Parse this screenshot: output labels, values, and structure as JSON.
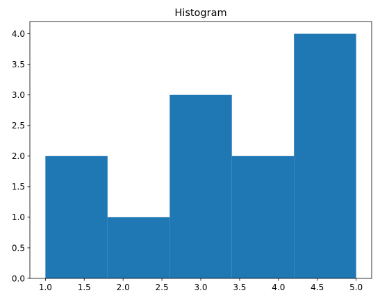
{
  "chart_data": {
    "type": "bar",
    "title": "Histogram",
    "xlabel": "",
    "ylabel": "",
    "xlim": [
      0.8,
      5.2
    ],
    "ylim": [
      0,
      4.2
    ],
    "grid": false,
    "bins": [
      {
        "start": 1.0,
        "end": 1.8,
        "count": 2
      },
      {
        "start": 1.8,
        "end": 2.6,
        "count": 1
      },
      {
        "start": 2.6,
        "end": 3.4,
        "count": 3
      },
      {
        "start": 3.4,
        "end": 4.2,
        "count": 2
      },
      {
        "start": 4.2,
        "end": 5.0,
        "count": 4
      }
    ],
    "x_ticks": [
      1.0,
      1.5,
      2.0,
      2.5,
      3.0,
      3.5,
      4.0,
      4.5,
      5.0
    ],
    "x_tick_labels": [
      "1.0",
      "1.5",
      "2.0",
      "2.5",
      "3.0",
      "3.5",
      "4.0",
      "4.5",
      "5.0"
    ],
    "y_ticks": [
      0,
      0.5,
      1.0,
      1.5,
      2.0,
      2.5,
      3.0,
      3.5,
      4.0
    ],
    "y_tick_labels": [
      "0.0",
      "0.5",
      "1.0",
      "1.5",
      "2.0",
      "2.5",
      "3.0",
      "3.5",
      "4.0"
    ],
    "bar_color": "#1f77b4"
  }
}
